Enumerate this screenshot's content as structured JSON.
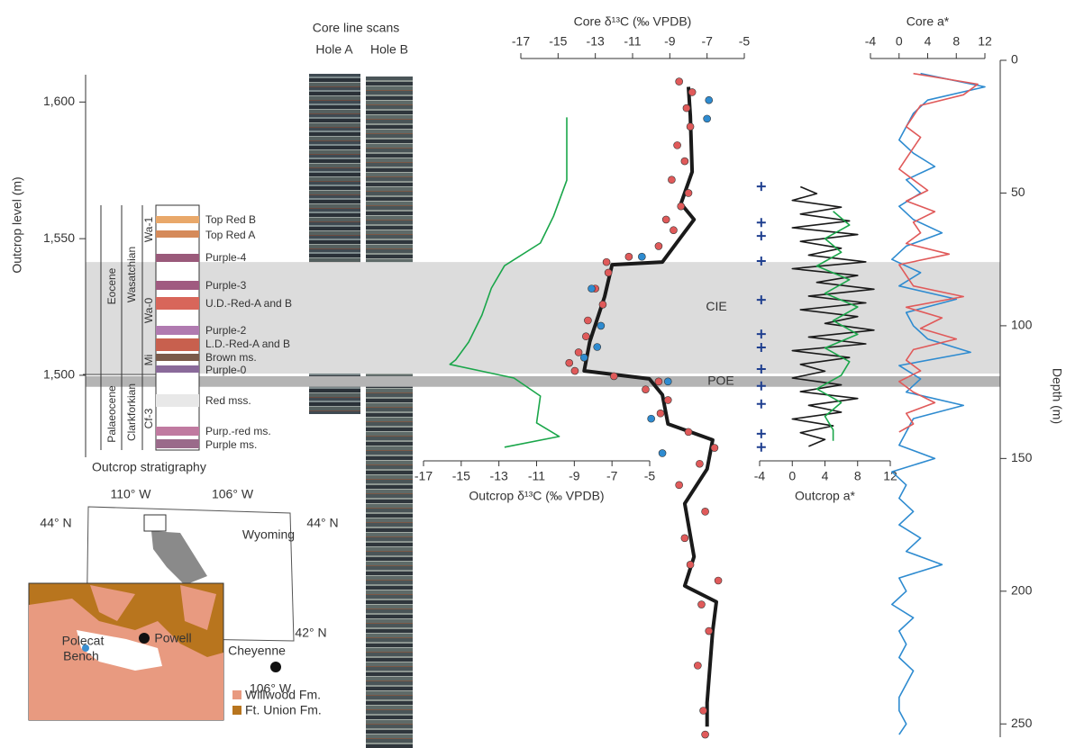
{
  "chart_data": [
    {
      "type": "line",
      "x_label": "Outcrop δ¹³C (‰ VPDB)",
      "x_axis": "bottom",
      "xlim": [
        -17,
        -5
      ],
      "xticks": [
        -17,
        -15,
        -13,
        -11,
        -9,
        -7,
        -5
      ],
      "y_label": "Outcrop level (m)",
      "y_axis": "left",
      "ylim": [
        1470,
        1610
      ],
      "yticks": [
        {
          "value": 1600,
          "label": "1,600"
        },
        {
          "value": 1550,
          "label": "1,550"
        },
        {
          "value": 1500,
          "label": "1,500"
        }
      ],
      "series": [
        {
          "style": "line",
          "color": "#1aa64a",
          "y": [
            1594.4,
            1571.4,
            1558.2,
            1548.4,
            1540.1,
            1531.9,
            1522.0,
            1512.2,
            1505.6,
            1504.0,
            1499.0,
            1492.4,
            1482.6,
            1477.6,
            1473.7
          ],
          "values": [
            -9.4,
            -9.4,
            -10.1,
            -10.8,
            -12.7,
            -13.4,
            -13.9,
            -14.6,
            -15.3,
            -15.6,
            -12.2,
            -10.8,
            -11.0,
            -9.8,
            -12.7
          ]
        }
      ]
    },
    {
      "type": "line",
      "x_label": "Core δ¹³C (‰ VPDB)",
      "x_axis": "top",
      "xlim": [
        -17,
        -5
      ],
      "xticks": [
        -17,
        -15,
        -13,
        -11,
        -9,
        -7,
        -5
      ],
      "y_label": "Depth (m)",
      "y_axis": "right",
      "ylim": [
        0,
        255
      ],
      "yticks": [
        0,
        50,
        100,
        150,
        200,
        250
      ],
      "bands": [
        {
          "label": "CIE",
          "depth": [
            76,
            118
          ],
          "color": "#dcdcdc"
        },
        {
          "label": "POE",
          "depth": [
            119,
            123
          ],
          "color": "#b4b4b4"
        }
      ],
      "series": [
        {
          "style": "line",
          "color": "#1a1a1a",
          "y": [
            10,
            21,
            42,
            54,
            60,
            76,
            77,
            89,
            106,
            117,
            120,
            126,
            137,
            143,
            154,
            167,
            187,
            198,
            204,
            215,
            242,
            251
          ],
          "values": [
            -8.0,
            -7.9,
            -7.8,
            -8.4,
            -7.7,
            -9.4,
            -12.1,
            -12.5,
            -13.3,
            -13.6,
            -10.1,
            -9.4,
            -9.1,
            -6.7,
            -7.0,
            -8.2,
            -7.7,
            -8.2,
            -6.5,
            -6.7,
            -7.0,
            -7.0
          ]
        },
        {
          "style": "points",
          "color": "#e05a5a",
          "y": [
            8,
            12,
            18,
            25,
            32,
            38,
            45,
            50,
            55,
            60,
            64,
            70,
            74,
            76,
            80,
            86,
            92,
            98,
            104,
            110,
            114,
            117,
            119,
            121,
            124,
            128,
            133,
            140,
            146,
            152,
            160,
            170,
            180,
            190,
            196,
            205,
            215,
            228,
            245,
            254
          ],
          "values": [
            -8.5,
            -7.8,
            -8.1,
            -7.9,
            -8.6,
            -8.2,
            -8.9,
            -8.0,
            -8.4,
            -9.2,
            -8.8,
            -9.6,
            -11.2,
            -12.4,
            -12.3,
            -13.0,
            -12.6,
            -13.4,
            -13.5,
            -13.9,
            -14.4,
            -14.1,
            -12.0,
            -9.6,
            -10.3,
            -9.1,
            -9.5,
            -8.0,
            -6.6,
            -7.4,
            -8.5,
            -7.1,
            -8.2,
            -7.9,
            -6.4,
            -7.3,
            -6.9,
            -7.5,
            -7.2,
            -7.1
          ]
        },
        {
          "style": "points",
          "color": "#2e8bd0",
          "y": [
            15,
            22,
            74,
            86,
            100,
            108,
            112,
            121,
            135,
            148
          ],
          "values": [
            -6.9,
            -7.0,
            -10.5,
            -13.2,
            -12.7,
            -12.9,
            -13.6,
            -9.1,
            -10.0,
            -9.4
          ]
        }
      ]
    },
    {
      "type": "line",
      "x_label": "Outcrop a*",
      "x_axis": "bottom",
      "xlim": [
        -4,
        12
      ],
      "xticks": [
        -4,
        0,
        4,
        8,
        12
      ],
      "ylim": [
        1470,
        1610
      ],
      "series": [
        {
          "style": "line",
          "color": "#1a1a1a",
          "y": [
            1569,
            1566.5,
            1564,
            1561.5,
            1559,
            1556.5,
            1554,
            1551.5,
            1549,
            1546.5,
            1544,
            1541.5,
            1539,
            1536.5,
            1534,
            1531.5,
            1529,
            1526.5,
            1524,
            1521.5,
            1519,
            1516.5,
            1514,
            1511.5,
            1509,
            1506.5,
            1504,
            1501.5,
            1499,
            1496.5,
            1494,
            1491.5,
            1489,
            1486.5,
            1484,
            1481.5,
            1479,
            1476.5,
            1474
          ],
          "values": [
            1,
            3,
            0,
            6,
            1,
            7,
            0,
            8,
            1,
            6,
            2,
            9,
            0,
            8,
            3,
            10,
            2,
            9,
            1,
            8,
            4,
            10,
            2,
            9,
            0,
            7,
            1,
            4,
            0,
            6,
            1,
            8,
            2,
            6,
            0,
            5,
            1,
            4,
            2
          ]
        },
        {
          "style": "line",
          "color": "#1aa64a",
          "y": [
            1560,
            1555,
            1550,
            1545,
            1540,
            1535,
            1530,
            1525,
            1520,
            1515,
            1510,
            1505,
            1500,
            1495,
            1490,
            1485,
            1480,
            1476
          ],
          "values": [
            5,
            7,
            4,
            6,
            3,
            7,
            4,
            8,
            5,
            8,
            4,
            7,
            6,
            3,
            6,
            4,
            5,
            5
          ]
        },
        {
          "style": "plus",
          "color": "#1f3f8f",
          "y": [
            1569.1,
            1555.9,
            1551.0,
            1541.8,
            1527.6,
            1515.1,
            1510.2,
            1502.3,
            1496.1,
            1489.5,
            1478.6,
            1473.7
          ],
          "values": [
            -3.8,
            -3.8,
            -3.8,
            -3.8,
            -3.8,
            -3.8,
            -3.8,
            -3.8,
            -3.8,
            -3.8,
            -3.8,
            -3.8
          ]
        }
      ]
    },
    {
      "type": "line",
      "x_label": "Core a*",
      "x_axis": "top",
      "xlim": [
        -4,
        12
      ],
      "xticks": [
        -4,
        0,
        4,
        8,
        12
      ],
      "ylim": [
        0,
        255
      ],
      "series": [
        {
          "style": "line",
          "color": "#2e8bd0",
          "y": [
            5,
            10,
            15,
            20,
            25,
            30,
            35,
            40,
            45,
            50,
            55,
            60,
            65,
            70,
            75,
            80,
            85,
            90,
            95,
            100,
            105,
            110,
            115,
            120,
            125,
            130,
            135,
            140,
            145,
            150,
            155,
            160,
            165,
            170,
            175,
            180,
            185,
            190,
            195,
            200,
            205,
            210,
            215,
            220,
            225,
            230,
            235,
            240,
            245,
            250,
            254
          ],
          "values": [
            3,
            12,
            4,
            2,
            1,
            0,
            2,
            5,
            1,
            3,
            0,
            2,
            6,
            1,
            -1,
            3,
            0,
            8,
            1,
            2,
            4,
            10,
            0,
            3,
            1,
            9,
            2,
            1,
            0,
            5,
            -1,
            1,
            0,
            2,
            0,
            3,
            1,
            6,
            0,
            1,
            -1,
            2,
            0,
            1,
            0,
            2,
            1,
            0,
            0,
            1,
            0
          ]
        },
        {
          "style": "line",
          "color": "#e05a5a",
          "y": [
            5,
            9,
            13,
            17,
            21,
            25,
            29,
            33,
            37,
            41,
            45,
            49,
            53,
            57,
            61,
            65,
            69,
            73,
            77,
            81,
            85,
            89,
            93,
            97,
            101,
            105,
            109,
            113,
            117,
            121,
            125,
            129,
            133,
            137,
            140
          ],
          "values": [
            2,
            11,
            9,
            3,
            2,
            1,
            3,
            2,
            1,
            0,
            2,
            4,
            1,
            5,
            2,
            3,
            1,
            7,
            0,
            1,
            2,
            9,
            1,
            6,
            3,
            8,
            2,
            1,
            3,
            0,
            2,
            5,
            1,
            2,
            0
          ]
        }
      ]
    }
  ],
  "core_scans": {
    "title": "Core line scans",
    "holes": [
      "Hole A",
      "Hole B"
    ]
  },
  "stratigraphy": {
    "caption": "Outcrop stratigraphy",
    "epochs": [
      "Eocene",
      "Palaeocene"
    ],
    "stages": [
      "Wasatchian",
      "Clarkforkian"
    ],
    "zones": [
      "Wa-1",
      "Wa-0",
      "Mi",
      "Cf-3"
    ],
    "beds": [
      "Top Red B",
      "Top Red A",
      "Purple-4",
      "Purple-3",
      "U.D.-Red-A and B",
      "Purple-2",
      "L.D.-Red-A and B",
      "Brown ms.",
      "Purple-0",
      "Red mss.",
      "Purp.-red ms.",
      "Purple ms."
    ]
  },
  "map": {
    "longitudes": [
      "110° W",
      "106° W",
      "106° W"
    ],
    "latitudes": [
      "44° N",
      "44° N",
      "42° N"
    ],
    "state": "Wyoming",
    "places": [
      [
        "Polecat",
        "Bench"
      ],
      "Powell",
      "Cheyenne"
    ],
    "legend": [
      "Willwood Fm.",
      "Ft. Union Fm."
    ]
  }
}
